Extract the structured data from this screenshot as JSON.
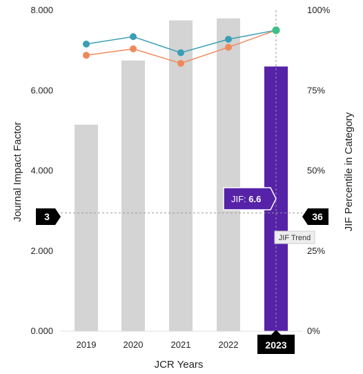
{
  "chart_data": {
    "type": "bar",
    "categories": [
      "2019",
      "2020",
      "2021",
      "2022",
      "2023"
    ],
    "values": [
      5.15,
      6.75,
      7.75,
      7.8,
      6.6
    ],
    "highlight_category": "2023",
    "xlabel": "JCR Years",
    "ylabel": "Journal Impact Factor",
    "ylabel_right": "JIF Percentile in Category",
    "ylim": [
      0,
      8
    ],
    "yticks": [
      "0.000",
      "2.000",
      "4.000",
      "6.000",
      "8.000"
    ],
    "ylim_right": [
      0,
      100
    ],
    "yticks_right": [
      "0%",
      "25%",
      "50%",
      "75%",
      "100%"
    ],
    "lines": [
      {
        "values": [
          89.5,
          91.8,
          86.8,
          91.0,
          93.8
        ],
        "color": "#3a9eb5"
      },
      {
        "values": [
          86.0,
          88.0,
          83.5,
          88.5,
          93.8
        ],
        "color": "#f0885a"
      }
    ],
    "line_end_color": "#3fbf86",
    "reference_line": {
      "value": 3,
      "left_label": "3",
      "right_label": "36"
    },
    "tooltip": {
      "prefix": "JIF: ",
      "value": "6.6"
    },
    "trend_label": "JIF Trend",
    "colors": {
      "bar": "#d3d4d3",
      "bar_highlight": "#5522a8",
      "marker": "#000000"
    }
  }
}
